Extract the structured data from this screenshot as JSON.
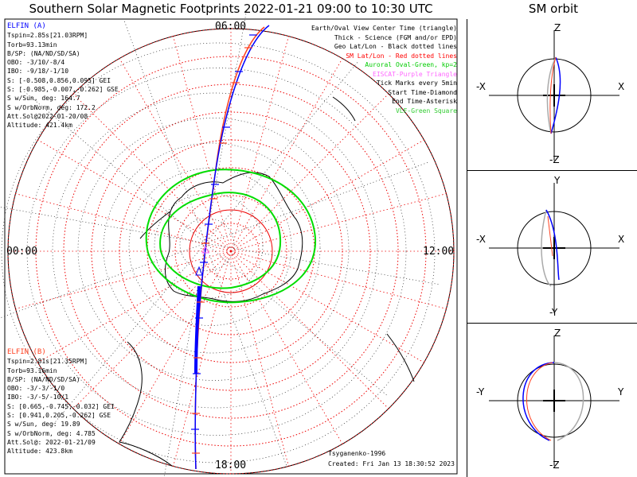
{
  "title": "Southern Solar Magnetic Footprints 2022-01-21 09:00 to 10:30 UTC",
  "sm_title": "SM orbit",
  "elfin_a": {
    "header": "ELFIN (A)",
    "color": "#0000ff",
    "lines": [
      "Tspin=2.85s[21.03RPM]",
      "Torb=93.13min",
      "B/SP: (NA/ND/SD/SA)",
      "OBO: -3/10/-8/4",
      "IBO: -9/18/-1/10",
      "S: [-0.508,0.856,0.095] GEI",
      "S: [-0.985,-0.007,-0.262] GSE",
      "S w/Sun, deg: 164.7",
      "S w/OrbNorm, deg: 172.2",
      "Att.Sol@2022-01-20/08",
      "Altitude: 421.4km"
    ]
  },
  "elfin_b": {
    "header": "ELFIN (B)",
    "color": "#ff4020",
    "lines": [
      "Tspin=2.81s[21.35RPM]",
      "Torb=93.16min",
      "B/SP: (NA/ND/SD/SA)",
      "OBO: -3/-3/-1/0",
      "IBO: -3/-5/-10/1",
      "S: [0.665,-0.745,-0.032] GEI",
      "S: [0.941,0.205,-0.262] GSE",
      "S w/Sun, deg: 19.89",
      "S w/OrbNorm, deg: 4.785",
      "Att.Sol@: 2022-01-21/09",
      "Altitude: 423.8km"
    ]
  },
  "legend": [
    {
      "text": "Earth/Oval View Center Time (triangle)",
      "color": "#000000"
    },
    {
      "text": "Thick - Science (FGM and/or EPD)",
      "color": "#000000"
    },
    {
      "text": "Geo Lat/Lon - Black dotted lines",
      "color": "#000000"
    },
    {
      "text": "SM Lat/Lon - Red dotted lines",
      "color": "#ff0000"
    },
    {
      "text": "Auroral Oval-Green, kp=2",
      "color": "#00cc00"
    },
    {
      "text": "EISCAT-Purple Triangle",
      "color": "#ff66ff"
    },
    {
      "text": "Tick Marks every 5min",
      "color": "#000000"
    },
    {
      "text": "Start Time-Diamond",
      "color": "#000000"
    },
    {
      "text": "End Time-Asterisk",
      "color": "#000000"
    },
    {
      "text": "VLF-Green Square",
      "color": "#33cc33"
    }
  ],
  "hour_labels": {
    "top": "06:00",
    "left": "00:00",
    "right": "12:00",
    "bottom": "18:00"
  },
  "footer": {
    "model": "Tsyganenko-1996",
    "created": "Created: Fri Jan 13 18:30:52 2023"
  },
  "sm_panels": [
    {
      "top": "Z",
      "bottom": "-Z",
      "left": "-X",
      "right": "X"
    },
    {
      "top": "Y",
      "bottom": "-Y",
      "left": "-X",
      "right": "X"
    },
    {
      "top": "Z",
      "bottom": "-Z",
      "left": "-Y",
      "right": "Y"
    }
  ],
  "chart_data": {
    "type": "polar-map",
    "projection": "southern SM polar",
    "sm_lat_circles_deg": [
      -80,
      -70,
      -60,
      -50,
      -40,
      -30,
      -20,
      -10
    ],
    "mlt_labels": [
      "00:00",
      "06:00",
      "12:00",
      "18:00"
    ],
    "series": [
      {
        "name": "ELFIN (A)",
        "color": "#0000ff"
      },
      {
        "name": "ELFIN (B)",
        "color": "#ff4020"
      }
    ]
  }
}
